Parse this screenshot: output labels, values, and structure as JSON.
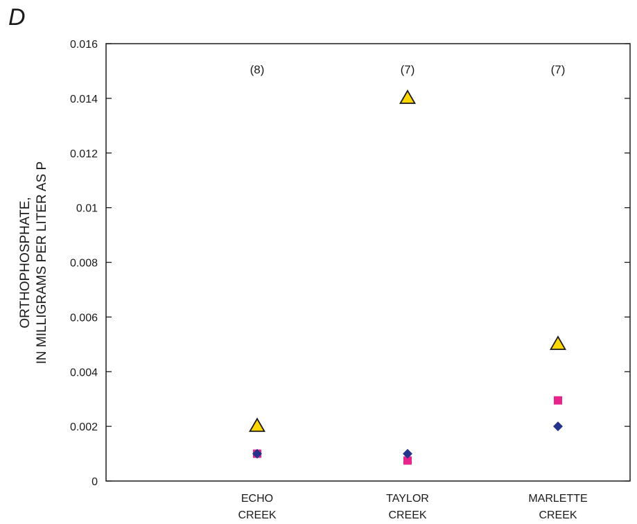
{
  "panel_label": "D",
  "chart_data": {
    "type": "scatter",
    "ylabel_lines": [
      "ORTHOPHOSPHATE,",
      "IN MILLIGRAMS PER LITER AS P"
    ],
    "xlabel": "",
    "ylim": [
      0,
      0.016
    ],
    "y_ticks": [
      0,
      0.002,
      0.004,
      0.006,
      0.008,
      0.01,
      0.012,
      0.014,
      0.016
    ],
    "y_tick_labels": [
      "0",
      "0.002",
      "0.004",
      "0.006",
      "0.008",
      "0.01",
      "0.012",
      "0.014",
      "0.016"
    ],
    "grid": false,
    "legend": "none",
    "categories": [
      [
        "ECHO",
        "CREEK"
      ],
      [
        "TAYLOR",
        "CREEK"
      ],
      [
        "MARLETTE",
        "CREEK"
      ]
    ],
    "sample_counts": [
      "(8)",
      "(7)",
      "(7)"
    ],
    "series": [
      {
        "marker": "triangle",
        "color": "#ffd700",
        "stroke": "#1a1a1a",
        "values": [
          0.002,
          0.014,
          0.005
        ]
      },
      {
        "marker": "square",
        "color": "#e8238c",
        "values": [
          0.001,
          0.00075,
          0.00295
        ]
      },
      {
        "marker": "diamond",
        "color": "#26338a",
        "values": [
          0.001,
          0.001,
          0.002
        ]
      }
    ]
  }
}
